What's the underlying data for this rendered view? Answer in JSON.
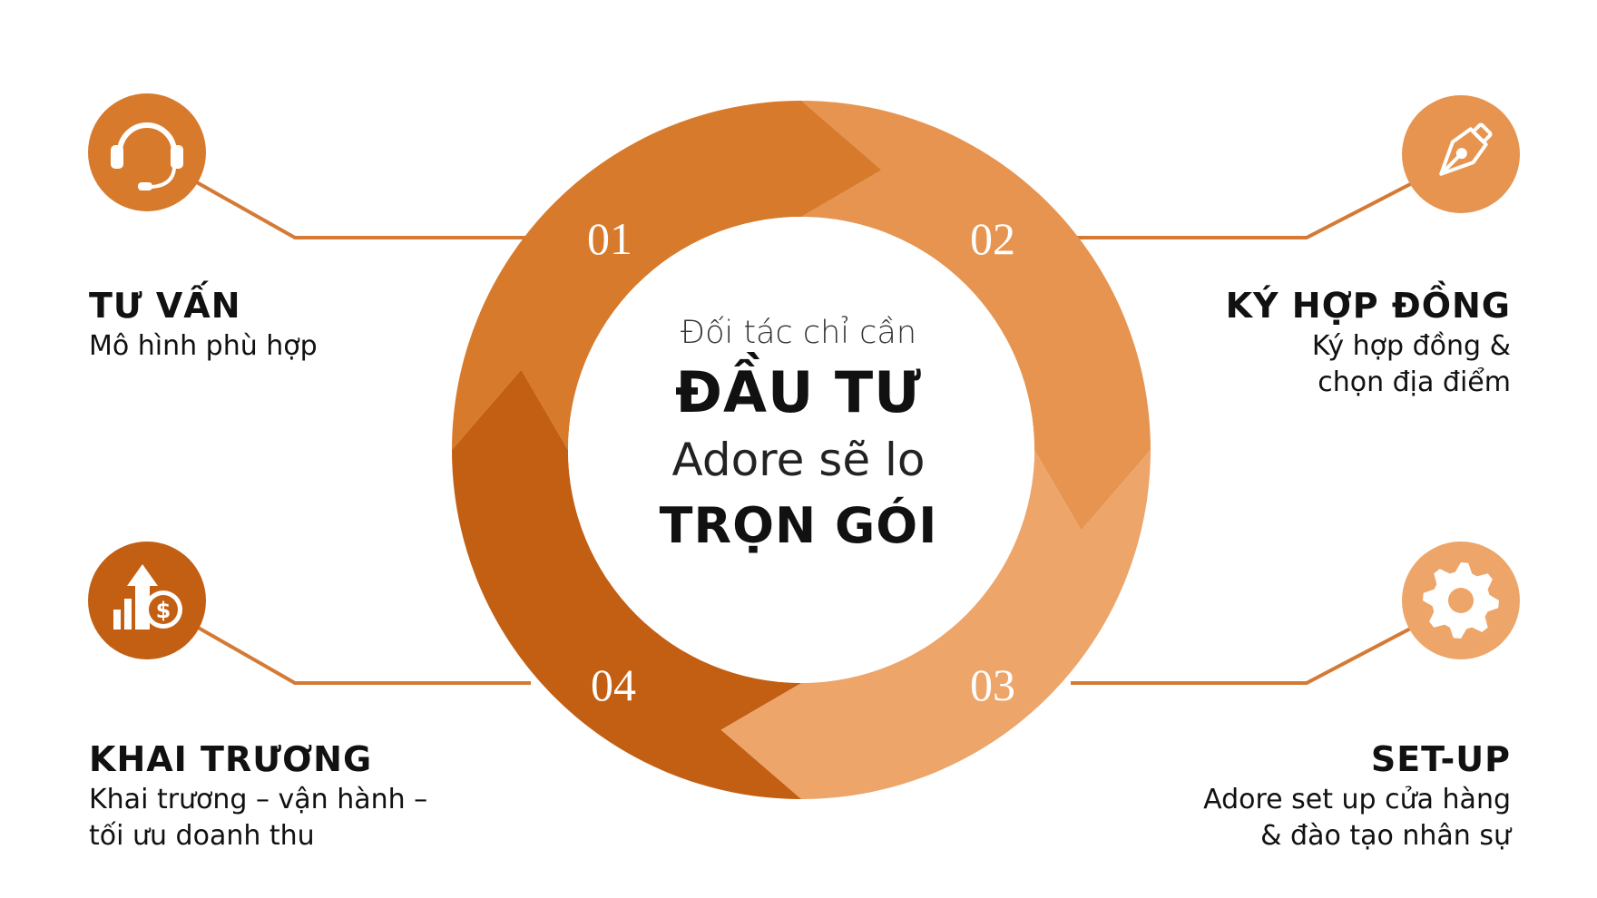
{
  "colors": {
    "segment_1": "#d77a2c",
    "segment_2": "#e69450",
    "segment_3": "#eda56a",
    "segment_4": "#c35f13",
    "connector": "#d57a35",
    "number": "#ffffff"
  },
  "center": {
    "line1": "Đối tác chỉ cần",
    "line2": "ĐẦU TƯ",
    "line3": "Adore sẽ lo",
    "line4": "TRỌN GÓI"
  },
  "steps": [
    {
      "number": "01",
      "icon": "headset-icon",
      "title": "TƯ VẤN",
      "desc": [
        "Mô hình phù hợp"
      ]
    },
    {
      "number": "02",
      "icon": "pen-nib-icon",
      "title": "KÝ HỢP ĐỒNG",
      "desc": [
        "Ký hợp đồng &",
        "chọn địa điểm"
      ]
    },
    {
      "number": "03",
      "icon": "gear-icon",
      "title": "SET-UP",
      "desc": [
        "Adore set up cửa hàng",
        "& đào tạo nhân sự"
      ]
    },
    {
      "number": "04",
      "icon": "growth-money-icon",
      "title": "KHAI TRƯƠNG",
      "desc": [
        "Khai trương – vận hành –",
        "tối ưu doanh thu"
      ]
    }
  ]
}
